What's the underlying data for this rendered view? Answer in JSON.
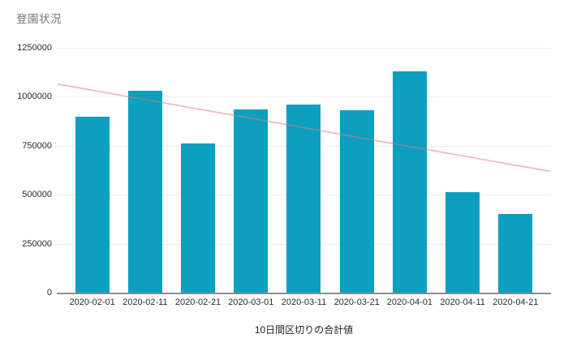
{
  "chart_data": {
    "type": "bar",
    "title": "登園状況",
    "xlabel": "10日間区切りの合計値",
    "ylabel": "",
    "categories": [
      "2020-02-01",
      "2020-02-11",
      "2020-02-21",
      "2020-03-01",
      "2020-03-11",
      "2020-03-21",
      "2020-04-01",
      "2020-04-11",
      "2020-04-21"
    ],
    "values": [
      900000,
      1030000,
      760000,
      935000,
      960000,
      930000,
      1130000,
      515000,
      400000
    ],
    "ylim": [
      0,
      1250000
    ],
    "yticks": [
      0,
      250000,
      500000,
      750000,
      1000000,
      1250000
    ],
    "grid": true,
    "legend": "none",
    "bar_color": "#0c9fbf",
    "grid_color": "#ededed",
    "axis_line_color": "#8c8c8c",
    "title_color": "#757575",
    "tick_label_color": "#2b2b2b",
    "trendline": {
      "type": "linear",
      "color": "rgba(224,120,120,0.55)",
      "start_value": 1065000,
      "end_value": 620000
    }
  }
}
